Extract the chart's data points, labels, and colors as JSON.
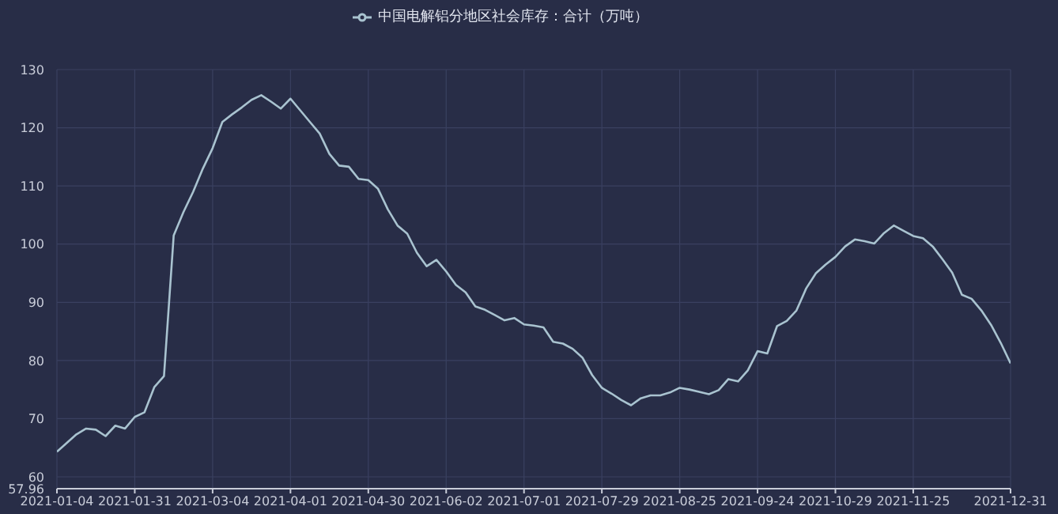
{
  "chart_data": {
    "type": "line",
    "categories": [
      "2021-01-04",
      null,
      null,
      null,
      null,
      null,
      null,
      null,
      "2021-01-31",
      null,
      null,
      null,
      null,
      null,
      null,
      null,
      "2021-03-04",
      null,
      null,
      null,
      null,
      null,
      null,
      null,
      "2021-04-01",
      null,
      null,
      null,
      null,
      null,
      null,
      null,
      "2021-04-30",
      null,
      null,
      null,
      null,
      null,
      null,
      null,
      "2021-06-02",
      null,
      null,
      null,
      null,
      null,
      null,
      null,
      "2021-07-01",
      null,
      null,
      null,
      null,
      null,
      null,
      null,
      "2021-07-29",
      null,
      null,
      null,
      null,
      null,
      null,
      null,
      "2021-08-25",
      null,
      null,
      null,
      null,
      null,
      null,
      null,
      "2021-09-24",
      null,
      null,
      null,
      null,
      null,
      null,
      null,
      "2021-10-29",
      null,
      null,
      null,
      null,
      null,
      null,
      null,
      "2021-11-25",
      null,
      null,
      null,
      null,
      null,
      null,
      null,
      null,
      null,
      "2021-12-31"
    ],
    "series": [
      {
        "name": "中国电解铝分地区社会库存：合计（万吨）",
        "color": "#a9c3d0",
        "values": [
          64.3,
          65.8,
          67.3,
          68.3,
          68.1,
          67.0,
          68.8,
          68.3,
          70.3,
          71.1,
          75.4,
          77.3,
          101.5,
          105.5,
          109,
          113,
          116.5,
          121,
          122.3,
          123.5,
          124.8,
          125.6,
          124.5,
          123.3,
          125.0,
          123.0,
          121.0,
          119.0,
          115.5,
          113.5,
          113.3,
          111.2,
          111.0,
          109.5,
          106,
          103.2,
          101.8,
          98.5,
          96.2,
          97.3,
          95.3,
          93.0,
          91.7,
          89.3,
          88.7,
          87.8,
          86.9,
          87.3,
          86.2,
          86.0,
          85.7,
          83.2,
          82.9,
          82.0,
          80.5,
          77.5,
          75.3,
          74.3,
          73.2,
          72.3,
          73.5,
          74.0,
          74.0,
          74.5,
          75.3,
          75.0,
          74.6,
          74.2,
          74.9,
          76.8,
          76.4,
          78.3,
          81.6,
          81.2,
          85.9,
          86.8,
          88.6,
          92.4,
          95.0,
          96.5,
          97.8,
          99.6,
          100.8,
          100.5,
          100.1,
          101.9,
          103.2,
          102.3,
          101.4,
          101.0,
          99.6,
          97.4,
          95.1,
          91.3,
          90.6,
          88.6,
          86.1,
          83.0,
          79.5
        ]
      }
    ],
    "ylim": [
      57.96,
      130
    ],
    "yticks": [
      57.96,
      60,
      70,
      80,
      90,
      100,
      110,
      120,
      130
    ],
    "grid": true,
    "legend": "top",
    "marker": "none",
    "line_style": "solid"
  }
}
